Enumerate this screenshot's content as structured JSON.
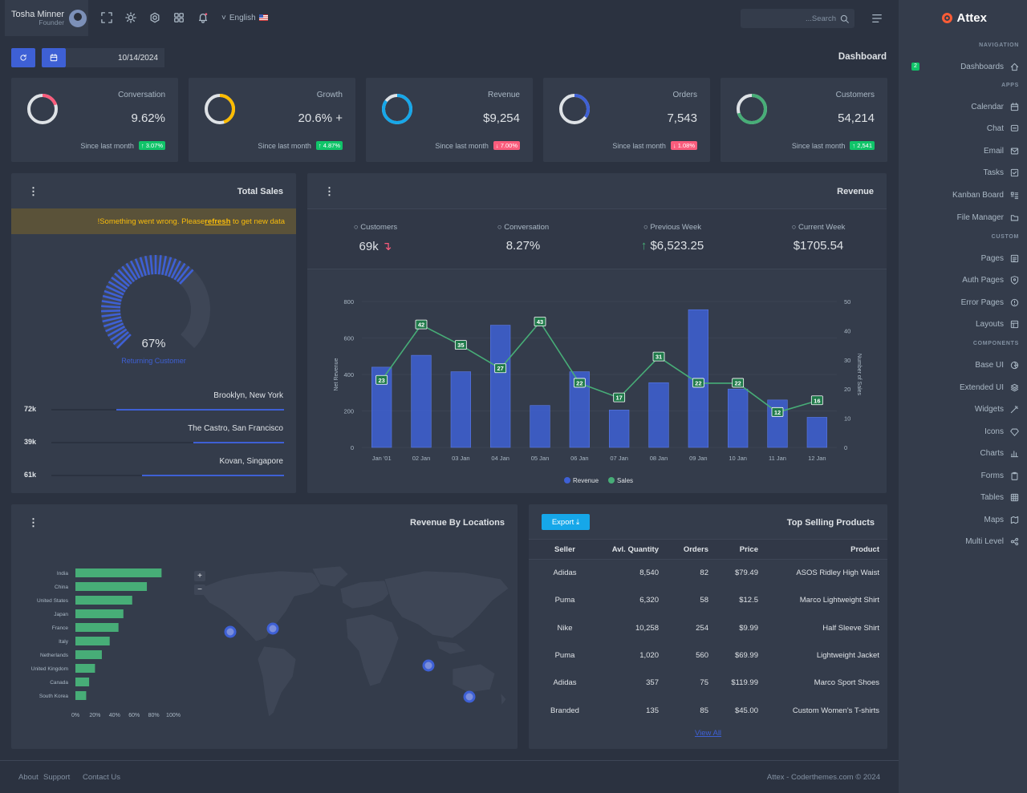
{
  "user": {
    "name": "Tosha Minner",
    "role": "Founder"
  },
  "topbar": {
    "language": "English",
    "search_placeholder": "...Search"
  },
  "brand": {
    "name": "Attex"
  },
  "date": "10/14/2024",
  "page_title": "Dashboard",
  "kpis": [
    {
      "label": "Conversation",
      "value": "9.62%",
      "since": "Since last month",
      "change": "3.07%",
      "dir": "up",
      "color": "#fa5c7c",
      "pct": 0.2
    },
    {
      "label": "Growth",
      "value": "20.6% +",
      "since": "Since last month",
      "change": "4.87%",
      "dir": "up",
      "color": "#ffbc00",
      "pct": 0.45
    },
    {
      "label": "Revenue",
      "value": "$9,254",
      "since": "Since last month",
      "change": "7.00%",
      "dir": "down",
      "color": "#16a7e9",
      "pct": 0.85
    },
    {
      "label": "Orders",
      "value": "7,543",
      "since": "Since last month",
      "change": "1.08%",
      "dir": "down",
      "color": "#3e60d5",
      "pct": 0.35
    },
    {
      "label": "Customers",
      "value": "54,214",
      "since": "Since last month",
      "change": "2,541",
      "dir": "up",
      "color": "#47ad77",
      "pct": 0.7
    }
  ],
  "total_sales": {
    "title": "Total Sales",
    "alert_pre": "!Something went wrong. Please ",
    "alert_link": "refresh",
    "alert_post": " to get new data",
    "gauge_value": "67%",
    "gauge_pct": 0.67,
    "gauge_label": "Returning Customer",
    "locations": [
      {
        "name": "Brooklyn, New York",
        "value": "72k",
        "pct": 0.72
      },
      {
        "name": "The Castro, San Francisco",
        "value": "39k",
        "pct": 0.39
      },
      {
        "name": "Kovan, Singapore",
        "value": "61k",
        "pct": 0.61
      }
    ]
  },
  "revenue": {
    "title": "Revenue",
    "stats": [
      {
        "label": "Customers",
        "value": "69k"
      },
      {
        "label": "Conversation",
        "value": "8.27%"
      },
      {
        "label": "Previous Week",
        "value": "$6,523.25"
      },
      {
        "label": "Current Week",
        "value": "$1705.54"
      }
    ]
  },
  "chart_data": {
    "type": "bar",
    "categories": [
      "Jan '01",
      "02 Jan",
      "03 Jan",
      "04 Jan",
      "05 Jan",
      "06 Jan",
      "07 Jan",
      "08 Jan",
      "09 Jan",
      "10 Jan",
      "11 Jan",
      "12 Jan"
    ],
    "series": [
      {
        "name": "Revenue",
        "type": "bar",
        "axis": "left",
        "values": [
          440,
          505,
          415,
          670,
          230,
          415,
          205,
          355,
          755,
          320,
          260,
          165
        ]
      },
      {
        "name": "Sales",
        "type": "line",
        "axis": "right",
        "values": [
          23,
          42,
          35,
          27,
          43,
          22,
          17,
          31,
          22,
          22,
          12,
          16
        ]
      }
    ],
    "ylabel": "Net Revenue",
    "y2label": "Number of Sales",
    "ylim": [
      0,
      800
    ],
    "y2lim": [
      0,
      50
    ],
    "yticks": [
      0,
      200,
      400,
      600,
      800
    ],
    "y2ticks": [
      0,
      10,
      20,
      30,
      40,
      50
    ],
    "colors": {
      "Revenue": "#3e60d5",
      "Sales": "#47ad77"
    }
  },
  "locations_chart": {
    "title": "Revenue By Locations",
    "type": "bar",
    "categories": [
      "India",
      "China",
      "United States",
      "Japan",
      "France",
      "Italy",
      "Netherlands",
      "United Kingdom",
      "Canada",
      "South Korea"
    ],
    "values": [
      88,
      73,
      58,
      49,
      44,
      35,
      27,
      20,
      14,
      11
    ],
    "xticks": [
      "0%",
      "20%",
      "40%",
      "60%",
      "80%",
      "100%"
    ],
    "zoom_in": "+",
    "zoom_out": "−"
  },
  "top_products": {
    "title": "Top Selling Products",
    "export_label": "Export",
    "columns": [
      "Seller",
      "Avl. Quantity",
      "Orders",
      "Price",
      "Product"
    ],
    "rows": [
      [
        "Adidas",
        "8,540",
        "82",
        "$79.49",
        "ASOS Ridley High Waist"
      ],
      [
        "Puma",
        "6,320",
        "58",
        "$12.5",
        "Marco Lightweight Shirt"
      ],
      [
        "Nike",
        "10,258",
        "254",
        "$9.99",
        "Half Sleeve Shirt"
      ],
      [
        "Puma",
        "1,020",
        "560",
        "$69.99",
        "Lightweight Jacket"
      ],
      [
        "Adidas",
        "357",
        "75",
        "$119.99",
        "Marco Sport Shoes"
      ],
      [
        "Branded",
        "135",
        "85",
        "$45.00",
        "Custom Women's T-shirts"
      ]
    ],
    "view_all": "View All"
  },
  "sidebar": {
    "sections": [
      {
        "title": "NAVIGATION",
        "items": [
          {
            "label": "Dashboards",
            "icon": "home-icon",
            "badge": "2"
          }
        ]
      },
      {
        "title": "APPS",
        "items": [
          {
            "label": "Calendar",
            "icon": "calendar-icon"
          },
          {
            "label": "Chat",
            "icon": "chat-icon"
          },
          {
            "label": "Email",
            "icon": "mail-icon"
          },
          {
            "label": "Tasks",
            "icon": "checkbox-icon"
          },
          {
            "label": "Kanban Board",
            "icon": "list-details-icon"
          },
          {
            "label": "File Manager",
            "icon": "folder-icon"
          }
        ]
      },
      {
        "title": "CUSTOM",
        "items": [
          {
            "label": "Pages",
            "icon": "pages-icon"
          },
          {
            "label": "Auth Pages",
            "icon": "shield-icon"
          },
          {
            "label": "Error Pages",
            "icon": "alert-icon"
          },
          {
            "label": "Layouts",
            "icon": "layout-icon"
          }
        ]
      },
      {
        "title": "COMPONENTS",
        "items": [
          {
            "label": "Base UI",
            "icon": "aperture-icon"
          },
          {
            "label": "Extended UI",
            "icon": "layers-icon"
          },
          {
            "label": "Widgets",
            "icon": "wand-icon"
          },
          {
            "label": "Icons",
            "icon": "diamond-icon"
          },
          {
            "label": "Charts",
            "icon": "chart-bar-icon"
          },
          {
            "label": "Forms",
            "icon": "clipboard-icon"
          },
          {
            "label": "Tables",
            "icon": "table-icon"
          },
          {
            "label": "Maps",
            "icon": "map-icon"
          },
          {
            "label": "Multi Level",
            "icon": "share-icon"
          }
        ]
      }
    ]
  },
  "footer": {
    "links": [
      "About",
      "Support",
      "Contact Us"
    ],
    "copyright": "Attex - Coderthemes.com © 2024"
  }
}
